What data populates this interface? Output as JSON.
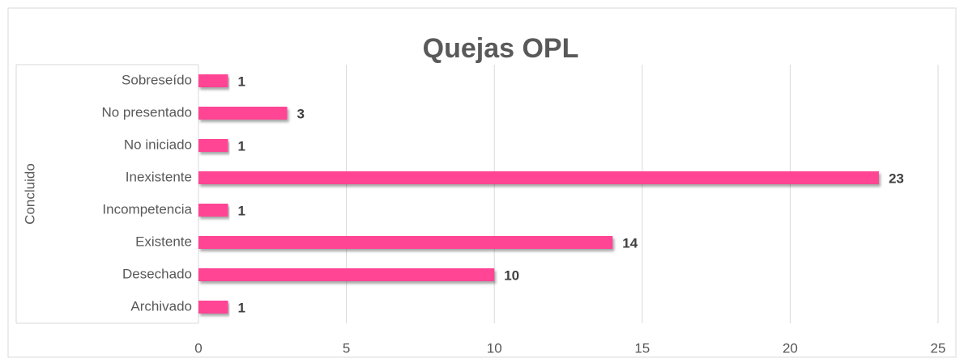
{
  "chart_data": {
    "type": "bar",
    "orientation": "horizontal",
    "title": "Quejas OPL",
    "group_label": "Concluido",
    "categories": [
      "Sobreseído",
      "No presentado",
      "No iniciado",
      "Inexistente",
      "Incompetencia",
      "Existente",
      "Desechado",
      "Archivado"
    ],
    "values": [
      1,
      3,
      1,
      23,
      1,
      14,
      10,
      1
    ],
    "color": "#ff4594",
    "xlim": [
      0,
      25
    ],
    "xticks": [
      0,
      5,
      10,
      15,
      20,
      25
    ],
    "grid": true
  }
}
